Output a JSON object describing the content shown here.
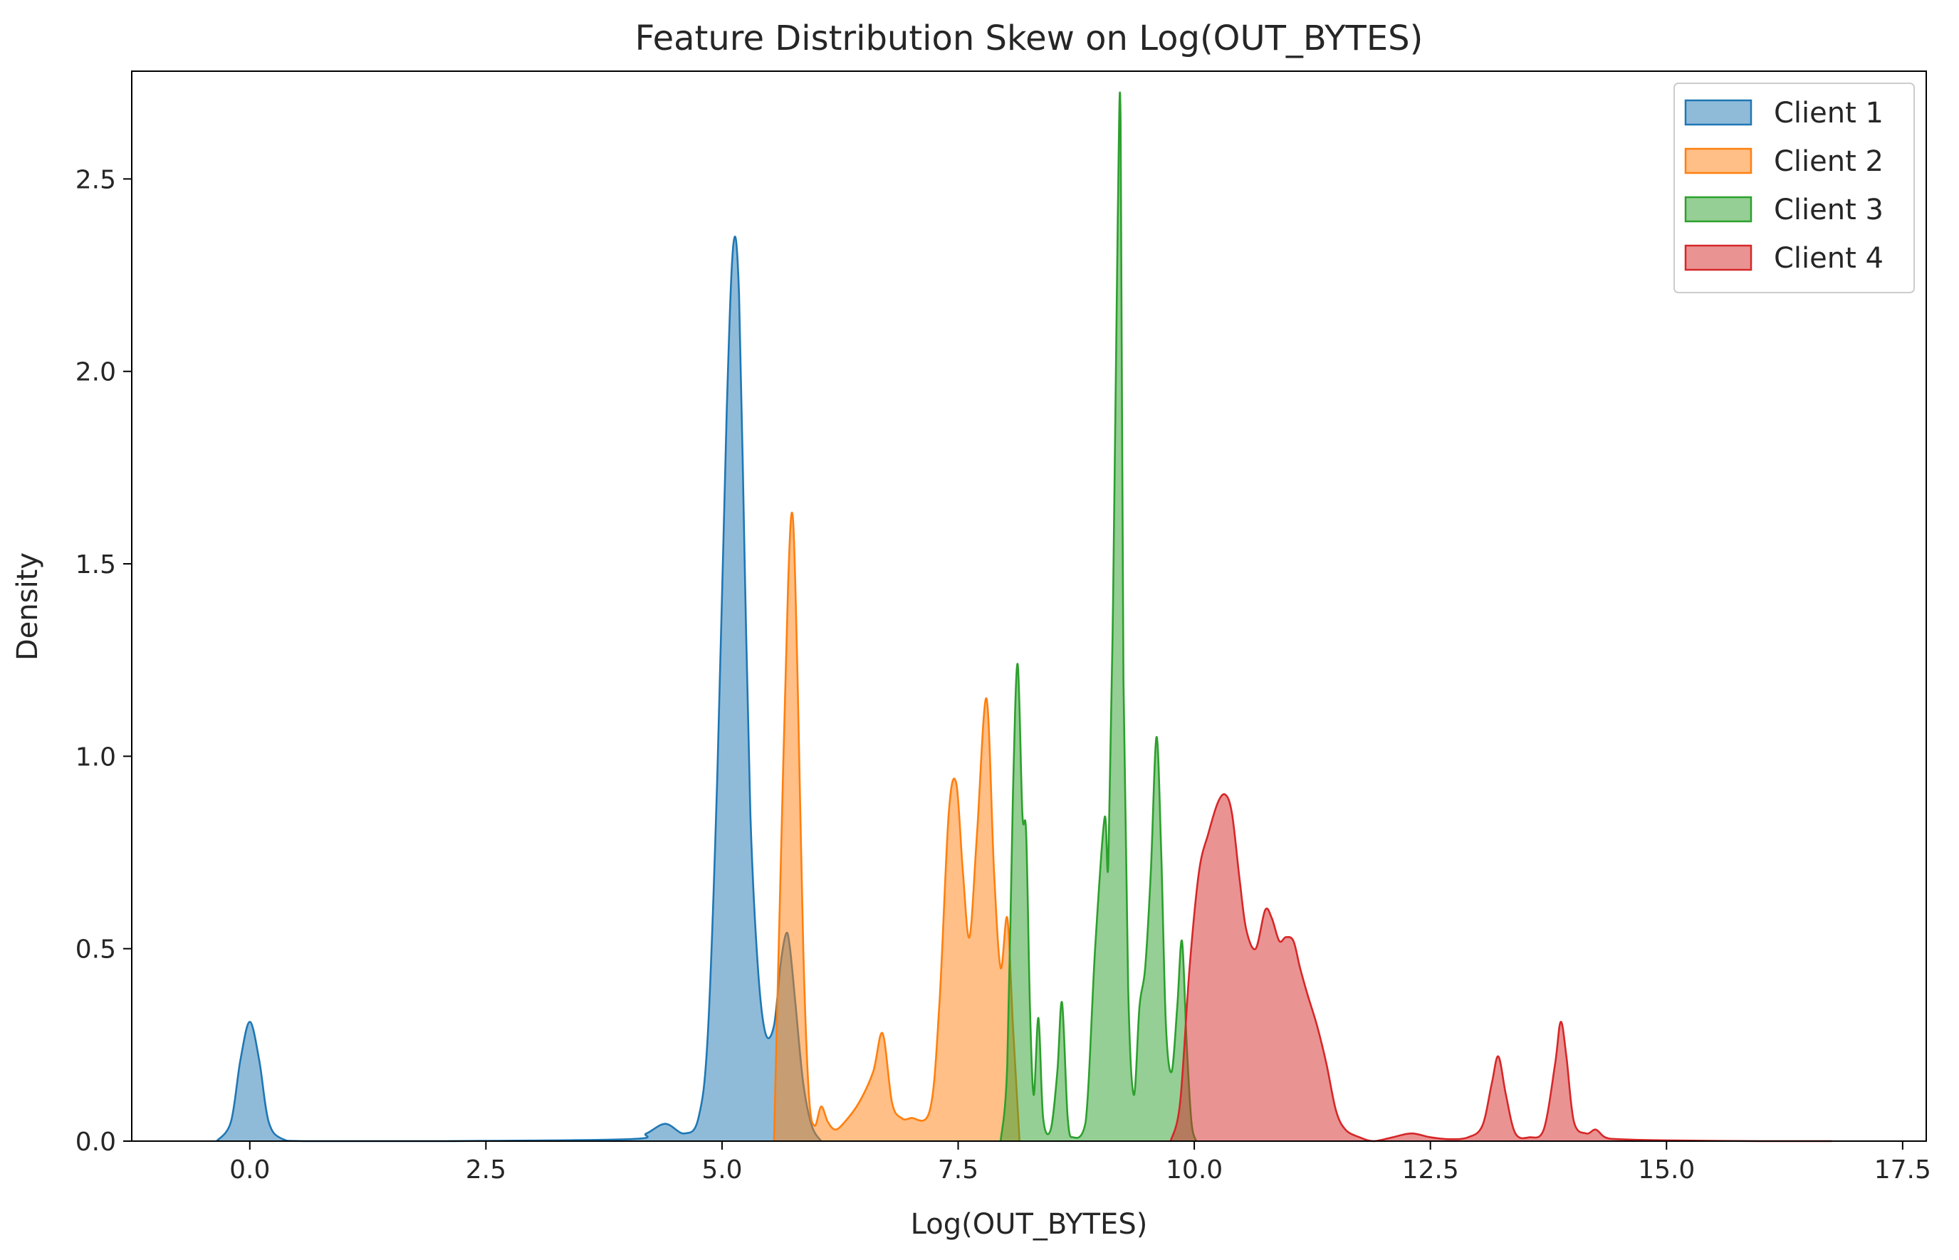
{
  "chart_data": {
    "type": "area",
    "title": "Feature Distribution Skew on Log(OUT_BYTES)",
    "xlabel": "Log(OUT_BYTES)",
    "ylabel": "Density",
    "xlim": [
      -1.25,
      17.75
    ],
    "ylim": [
      0,
      2.78
    ],
    "xticks": [
      0.0,
      2.5,
      5.0,
      7.5,
      10.0,
      12.5,
      15.0,
      17.5
    ],
    "xtick_labels": [
      "0.0",
      "2.5",
      "5.0",
      "7.5",
      "10.0",
      "12.5",
      "15.0",
      "17.5"
    ],
    "yticks": [
      0.0,
      0.5,
      1.0,
      1.5,
      2.0,
      2.5
    ],
    "ytick_labels": [
      "0.0",
      "0.5",
      "1.0",
      "1.5",
      "2.0",
      "2.5"
    ],
    "grid": false,
    "legend_position": "top-right",
    "series": [
      {
        "name": "Client 1",
        "color": "#1f77b4",
        "x": [
          -0.35,
          -0.2,
          -0.1,
          0.0,
          0.1,
          0.2,
          0.35,
          0.6,
          2.0,
          4.0,
          4.2,
          4.4,
          4.6,
          4.75,
          4.85,
          4.95,
          5.05,
          5.12,
          5.18,
          5.24,
          5.3,
          5.38,
          5.46,
          5.55,
          5.62,
          5.68,
          5.72,
          5.78,
          5.86,
          5.95,
          6.05
        ],
        "values": [
          0.0,
          0.05,
          0.21,
          0.31,
          0.21,
          0.05,
          0.005,
          0.0,
          0.0,
          0.005,
          0.02,
          0.045,
          0.02,
          0.06,
          0.28,
          0.95,
          1.9,
          2.33,
          2.2,
          1.5,
          0.85,
          0.45,
          0.28,
          0.3,
          0.46,
          0.54,
          0.5,
          0.35,
          0.15,
          0.04,
          0.0
        ]
      },
      {
        "name": "Client 2",
        "color": "#ff7f0e",
        "x": [
          5.55,
          5.62,
          5.7,
          5.75,
          5.8,
          5.86,
          5.92,
          5.98,
          6.05,
          6.12,
          6.2,
          6.3,
          6.45,
          6.6,
          6.7,
          6.8,
          6.9,
          7.0,
          7.2,
          7.3,
          7.4,
          7.48,
          7.55,
          7.62,
          7.7,
          7.8,
          7.88,
          7.95,
          8.02,
          8.08,
          8.15
        ],
        "values": [
          0.0,
          0.7,
          1.45,
          1.62,
          1.2,
          0.5,
          0.12,
          0.04,
          0.09,
          0.05,
          0.03,
          0.05,
          0.1,
          0.18,
          0.28,
          0.1,
          0.06,
          0.06,
          0.08,
          0.35,
          0.85,
          0.93,
          0.7,
          0.53,
          0.8,
          1.15,
          0.7,
          0.45,
          0.58,
          0.3,
          0.0
        ]
      },
      {
        "name": "Client 3",
        "color": "#2ca02c",
        "x": [
          7.95,
          8.02,
          8.08,
          8.13,
          8.18,
          8.22,
          8.26,
          8.3,
          8.35,
          8.4,
          8.48,
          8.55,
          8.6,
          8.66,
          8.72,
          8.85,
          8.95,
          9.05,
          9.09,
          9.14,
          9.19,
          9.22,
          9.25,
          9.3,
          9.36,
          9.42,
          9.48,
          9.54,
          9.6,
          9.65,
          9.7,
          9.76,
          9.82,
          9.87,
          9.92,
          9.97,
          10.02
        ],
        "values": [
          0.0,
          0.2,
          0.9,
          1.24,
          0.85,
          0.8,
          0.35,
          0.12,
          0.32,
          0.06,
          0.03,
          0.18,
          0.36,
          0.06,
          0.01,
          0.05,
          0.5,
          0.84,
          0.72,
          1.4,
          2.4,
          2.65,
          1.2,
          0.4,
          0.12,
          0.35,
          0.45,
          0.7,
          1.05,
          0.75,
          0.3,
          0.18,
          0.35,
          0.52,
          0.25,
          0.05,
          0.0
        ]
      },
      {
        "name": "Client 4",
        "color": "#d62728",
        "x": [
          9.75,
          9.85,
          9.95,
          10.05,
          10.15,
          10.25,
          10.33,
          10.4,
          10.48,
          10.55,
          10.65,
          10.75,
          10.82,
          10.9,
          10.97,
          11.05,
          11.12,
          11.2,
          11.3,
          11.4,
          11.5,
          11.6,
          11.75,
          11.9,
          12.1,
          12.3,
          12.5,
          12.7,
          12.9,
          13.05,
          13.15,
          13.22,
          13.3,
          13.4,
          13.55,
          13.7,
          13.82,
          13.88,
          13.94,
          14.02,
          14.15,
          14.25,
          14.35,
          14.5,
          15.0,
          16.0,
          16.75
        ],
        "values": [
          0.0,
          0.1,
          0.45,
          0.7,
          0.8,
          0.88,
          0.9,
          0.85,
          0.68,
          0.55,
          0.5,
          0.6,
          0.58,
          0.52,
          0.53,
          0.52,
          0.45,
          0.38,
          0.3,
          0.2,
          0.08,
          0.03,
          0.01,
          0.0,
          0.01,
          0.02,
          0.01,
          0.005,
          0.01,
          0.04,
          0.15,
          0.22,
          0.12,
          0.02,
          0.01,
          0.03,
          0.2,
          0.31,
          0.22,
          0.05,
          0.02,
          0.03,
          0.01,
          0.005,
          0.002,
          0.0,
          0.0
        ]
      }
    ]
  }
}
